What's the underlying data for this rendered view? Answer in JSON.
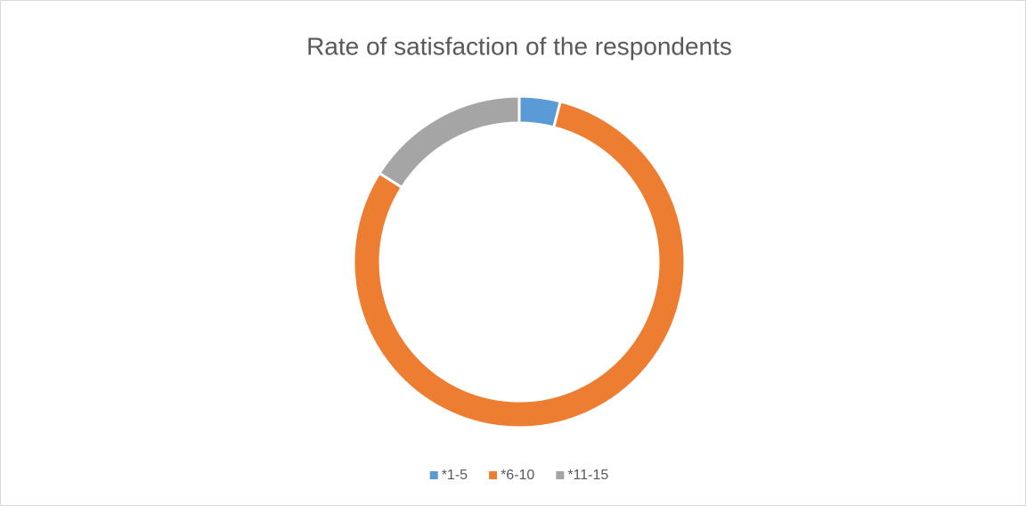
{
  "chart_data": {
    "type": "donut",
    "title": "Rate of satisfaction of the respondents",
    "categories": [
      "*1-5",
      "*6-10",
      "*11-15"
    ],
    "values": [
      4,
      80,
      16
    ],
    "colors": [
      "#5b9bd5",
      "#ed7d31",
      "#a5a5a5"
    ],
    "legend": "bottom"
  }
}
